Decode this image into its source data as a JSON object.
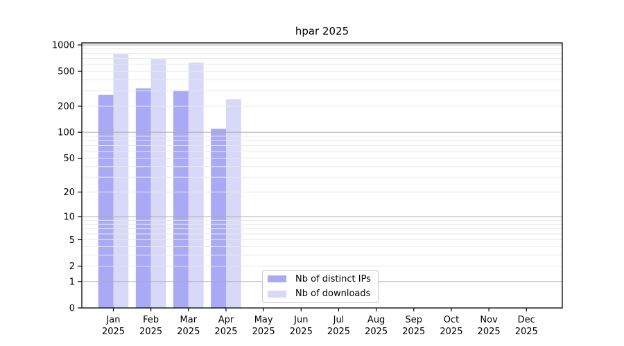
{
  "chart_data": {
    "type": "bar",
    "title": "hpar 2025",
    "categories": [
      "Jan",
      "Feb",
      "Mar",
      "Apr",
      "May",
      "Jun",
      "Jul",
      "Aug",
      "Sep",
      "Oct",
      "Nov",
      "Dec"
    ],
    "category_year": "2025",
    "series": [
      {
        "name": "Nb of distinct IPs",
        "color": "#a9a9f5",
        "values": [
          270,
          320,
          300,
          110,
          null,
          null,
          null,
          null,
          null,
          null,
          null,
          null
        ]
      },
      {
        "name": "Nb of downloads",
        "color": "#d8d8f8",
        "values": [
          790,
          690,
          630,
          240,
          null,
          null,
          null,
          null,
          null,
          null,
          null,
          null
        ]
      }
    ],
    "xlabel": "",
    "ylabel": "",
    "yscale": "log1p",
    "yticks": [
      0,
      1,
      2,
      5,
      10,
      20,
      50,
      100,
      200,
      500,
      1000
    ],
    "ylim": [
      0,
      1030
    ],
    "grid": "horizontal",
    "grid_minor_color": "#e9e9e9",
    "grid_major_color": "#ababab",
    "axis_color": "#000000",
    "legend_position": "bottom-center"
  }
}
